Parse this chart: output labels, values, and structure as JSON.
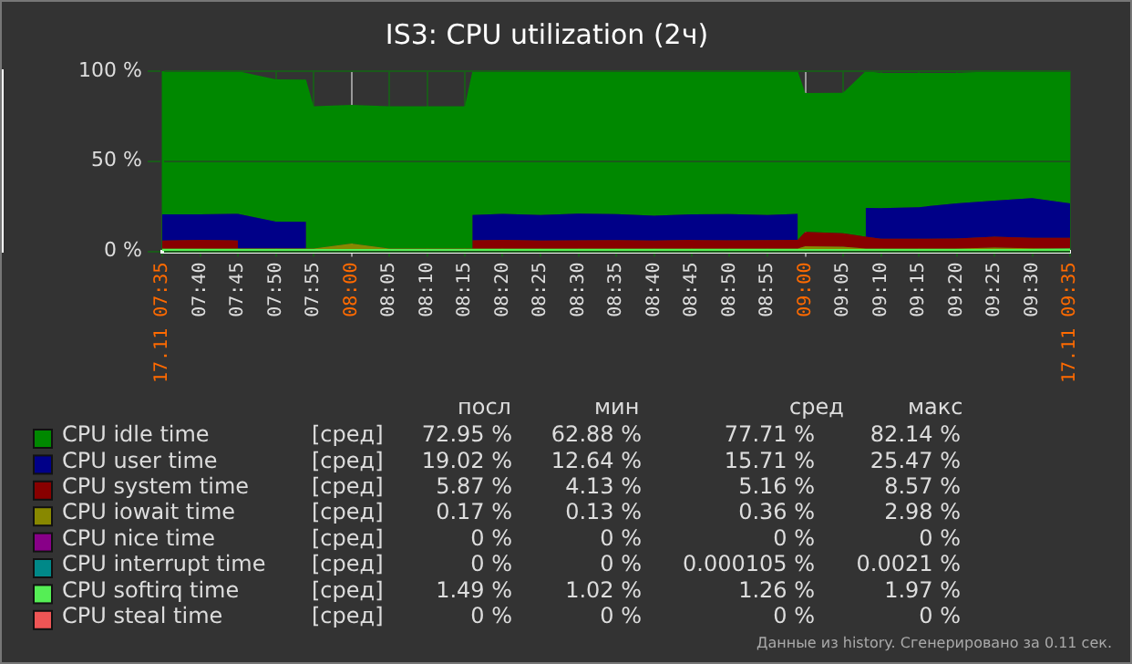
{
  "chart_data": {
    "type": "area",
    "stacked": true,
    "title": "IS3: CPU utilization (2ч)",
    "x": [
      7.5833,
      7.6667,
      7.75,
      7.8333,
      7.9,
      7.9167,
      8.0,
      8.0833,
      8.1667,
      8.25,
      8.2667,
      8.3333,
      8.4167,
      8.5,
      8.5833,
      8.6667,
      8.75,
      8.8333,
      8.9167,
      8.9833,
      9.0,
      9.0833,
      9.1333,
      9.1667,
      9.25,
      9.3333,
      9.4167,
      9.5,
      9.5833
    ],
    "series": [
      {
        "name": "CPU steal time",
        "color": "#ee5555",
        "values": [
          null,
          null,
          null,
          null,
          null,
          null,
          null,
          null,
          null,
          null,
          null,
          null,
          null,
          null,
          null,
          null,
          null,
          null,
          null,
          null,
          null,
          null,
          null,
          null,
          null,
          null,
          null,
          null,
          null
        ]
      },
      {
        "name": "CPU softirq time",
        "color": "#55ee55",
        "values": [
          1.3,
          1.3,
          1.3,
          1.3,
          1.3,
          1.3,
          1.3,
          1.3,
          1.3,
          1.3,
          1.3,
          1.3,
          1.3,
          1.3,
          1.3,
          1.3,
          1.3,
          1.3,
          1.3,
          1.3,
          1.3,
          1.3,
          1.3,
          1.3,
          1.3,
          1.3,
          1.3,
          1.3,
          1.49
        ]
      },
      {
        "name": "CPU interrupt time",
        "color": "#008888",
        "values": [
          null,
          null,
          null,
          null,
          null,
          null,
          null,
          null,
          null,
          null,
          null,
          null,
          null,
          null,
          null,
          null,
          null,
          null,
          null,
          null,
          null,
          null,
          null,
          null,
          null,
          null,
          null,
          null,
          null
        ]
      },
      {
        "name": "CPU nice time",
        "color": "#880088",
        "values": [
          null,
          null,
          null,
          null,
          null,
          null,
          null,
          null,
          null,
          null,
          null,
          null,
          null,
          null,
          null,
          null,
          null,
          null,
          null,
          null,
          null,
          null,
          null,
          null,
          null,
          null,
          null,
          null,
          null
        ]
      },
      {
        "name": "CPU iowait time",
        "color": "#888800",
        "values": [
          0.2,
          0.2,
          0.2,
          0.2,
          0.2,
          0.2,
          2.98,
          0.2,
          0.2,
          0.2,
          0.2,
          0.2,
          0.2,
          0.2,
          0.2,
          0.2,
          0.2,
          0.2,
          0.2,
          0.2,
          1.5,
          1.2,
          0.3,
          0.2,
          0.2,
          0.2,
          0.8,
          0.4,
          0.17
        ]
      },
      {
        "name": "CPU system time",
        "color": "#880000",
        "values": [
          4.5,
          4.8,
          4.5,
          null,
          null,
          null,
          null,
          null,
          null,
          null,
          4.6,
          4.8,
          4.5,
          4.6,
          4.7,
          4.5,
          4.8,
          4.6,
          4.7,
          4.8,
          8.0,
          7.5,
          6.5,
          5.5,
          5.5,
          5.6,
          6.0,
          5.8,
          5.87
        ]
      },
      {
        "name": "CPU user time",
        "color": "#000088",
        "values": [
          14.5,
          14.2,
          14.8,
          15,
          14.8,
          null,
          null,
          null,
          null,
          null,
          14,
          14.5,
          14.2,
          14.8,
          14.5,
          13.8,
          14.2,
          14.5,
          14,
          14.5,
          null,
          null,
          16,
          17,
          17.5,
          19.5,
          20,
          22,
          19.02
        ]
      },
      {
        "name": "CPU idle time",
        "color": "#008800",
        "values": [
          79.5,
          79.5,
          79.2,
          79,
          79,
          79,
          77,
          79,
          79,
          79,
          79.9,
          79,
          79.8,
          79.1,
          79.3,
          80.2,
          79.5,
          79.4,
          79.8,
          79.2,
          77,
          78,
          76,
          75,
          74.5,
          72.4,
          71.9,
          70.5,
          72.95
        ]
      }
    ],
    "xlim": [
      7.5833,
      9.5833
    ],
    "xticks": [
      {
        "value": 7.5833,
        "label": "17.11 07:35"
      },
      {
        "value": 7.6667,
        "label": "07:40"
      },
      {
        "value": 7.75,
        "label": "07:45"
      },
      {
        "value": 7.8333,
        "label": "07:50"
      },
      {
        "value": 7.9167,
        "label": "07:55"
      },
      {
        "value": 8,
        "label": "08:00"
      },
      {
        "value": 8.0833,
        "label": "08:05"
      },
      {
        "value": 8.1667,
        "label": "08:10"
      },
      {
        "value": 8.25,
        "label": "08:15"
      },
      {
        "value": 8.3333,
        "label": "08:20"
      },
      {
        "value": 8.4167,
        "label": "08:25"
      },
      {
        "value": 8.5,
        "label": "08:30"
      },
      {
        "value": 8.5833,
        "label": "08:35"
      },
      {
        "value": 8.6667,
        "label": "08:40"
      },
      {
        "value": 8.75,
        "label": "08:45"
      },
      {
        "value": 8.8333,
        "label": "08:50"
      },
      {
        "value": 8.9167,
        "label": "08:55"
      },
      {
        "value": 9,
        "label": "09:00"
      },
      {
        "value": 9.0833,
        "label": "09:05"
      },
      {
        "value": 9.1667,
        "label": "09:10"
      },
      {
        "value": 9.25,
        "label": "09:15"
      },
      {
        "value": 9.3333,
        "label": "09:20"
      },
      {
        "value": 9.4167,
        "label": "09:25"
      },
      {
        "value": 9.5,
        "label": "09:30"
      },
      {
        "value": 9.5833,
        "label": "17.11 09:35"
      }
    ],
    "ylim": [
      0,
      100
    ],
    "yticks": [
      {
        "value": 0,
        "label": "0 %"
      },
      {
        "value": 50,
        "label": "50 %"
      },
      {
        "value": 100,
        "label": "100 %"
      }
    ],
    "grid": true,
    "legend": "bottom",
    "annotations": [
      "посл",
      "мин",
      "сред",
      "макс",
      "[сред]",
      "72.95 %",
      "62.88 %",
      "77.71 %",
      "82.14 %",
      "[сред]",
      "19.02 %",
      "12.64 %",
      "15.71 %",
      "25.47 %",
      "[сред]",
      "5.87 %",
      "4.13 %",
      "5.16 %",
      "8.57 %",
      "[сред]",
      "0.17 %",
      "0.13 %",
      "0.36 %",
      "2.98 %",
      "[сред]",
      "0 %",
      "0 %",
      "0 %",
      "0 %",
      "[сред]",
      "0 %",
      "0 %",
      "0.000105 %",
      "0.0021 %",
      "[сред]",
      "1.49 %",
      "1.02 %",
      "1.26 %",
      "1.97 %",
      "[сред]",
      "0 %",
      "0 %",
      "0 %",
      "0 %",
      "Данные из history. Сгенерировано за 0.11 сек."
    ]
  }
}
